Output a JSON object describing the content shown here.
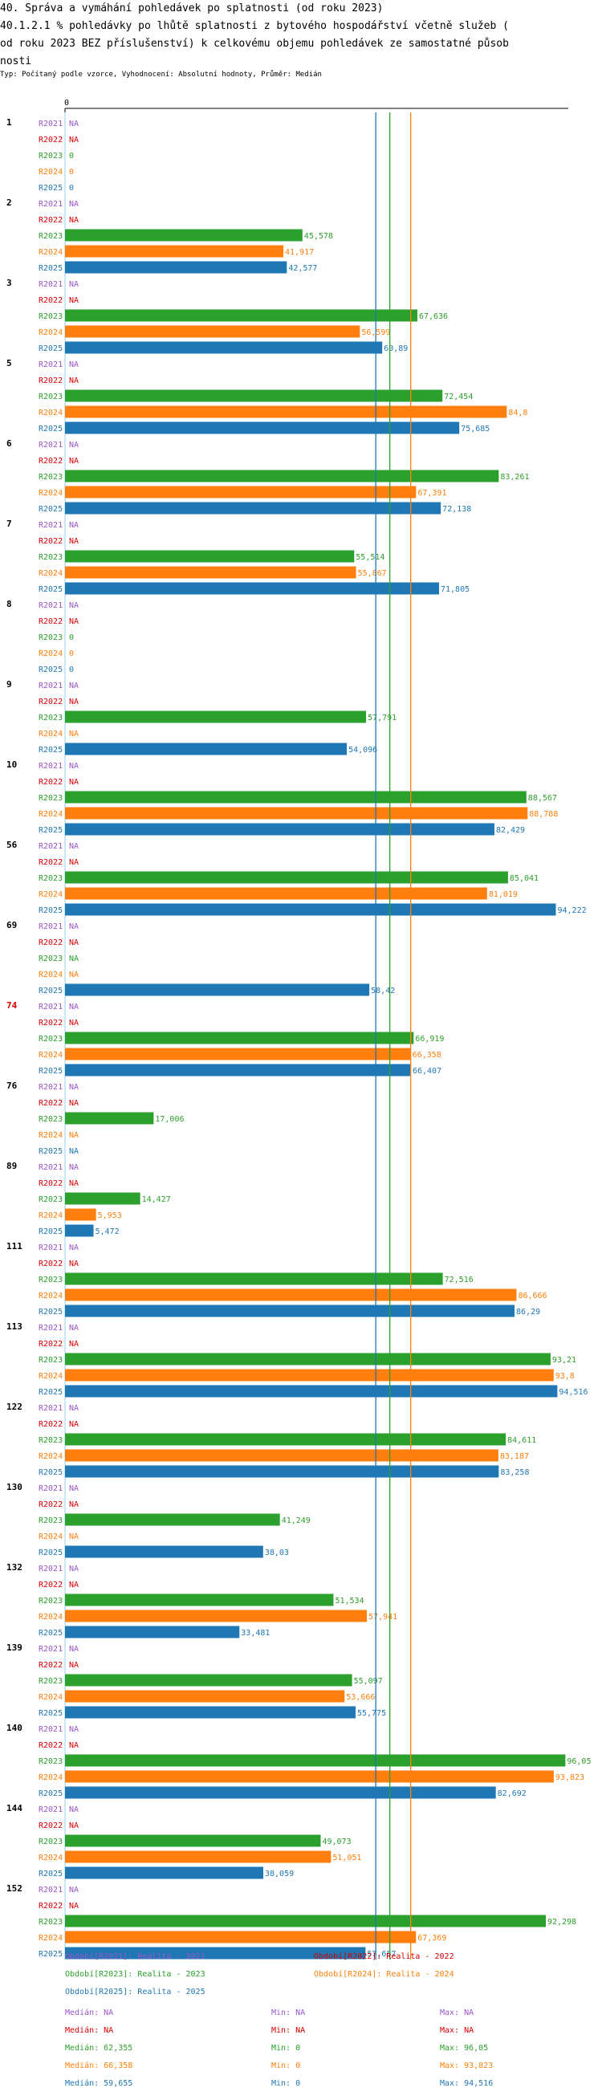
{
  "title_lines": [
    "40. Správa a vymáhání pohledávek po splatnosti (od roku 2023)",
    "40.1.2.1 % pohledávky po lhůtě splatnosti z bytového hospodářství včetně služeb (",
    "od roku 2023 BEZ příslušenství) k celkovému objemu pohledávek ze samostatné působ",
    "nosti"
  ],
  "subtitle": "Typ: Počítaný podle vzorce, Vyhodnocení: Absolutní hodnoty, Průměr: Medián",
  "colors": {
    "R2021": "#9a56c8",
    "R2022": "#d40000",
    "R2023": "#2ca02c",
    "R2024": "#ff7f0e",
    "R2025": "#1f77b4"
  },
  "chart_data": {
    "type": "bar",
    "orientation": "horizontal",
    "axis_zero_label": "0",
    "xlim": [
      0,
      100
    ],
    "series_names": [
      "R2021",
      "R2022",
      "R2023",
      "R2024",
      "R2025"
    ],
    "na_label": "NA",
    "categories": [
      {
        "id": "1",
        "highlight": false,
        "values": [
          null,
          null,
          0,
          0,
          0
        ],
        "labels": [
          "NA",
          "NA",
          "0",
          "0",
          "0"
        ]
      },
      {
        "id": "2",
        "highlight": false,
        "values": [
          null,
          null,
          45.578,
          41.917,
          42.577
        ],
        "labels": [
          "NA",
          "NA",
          "45,578",
          "41,917",
          "42,577"
        ]
      },
      {
        "id": "3",
        "highlight": false,
        "values": [
          null,
          null,
          67.636,
          56.599,
          60.89
        ],
        "labels": [
          "NA",
          "NA",
          "67,636",
          "56,599",
          "60,89"
        ]
      },
      {
        "id": "5",
        "highlight": false,
        "values": [
          null,
          null,
          72.454,
          84.8,
          75.685
        ],
        "labels": [
          "NA",
          "NA",
          "72,454",
          "84,8",
          "75,685"
        ]
      },
      {
        "id": "6",
        "highlight": false,
        "values": [
          null,
          null,
          83.261,
          67.391,
          72.138
        ],
        "labels": [
          "NA",
          "NA",
          "83,261",
          "67,391",
          "72,138"
        ]
      },
      {
        "id": "7",
        "highlight": false,
        "values": [
          null,
          null,
          55.514,
          55.867,
          71.805
        ],
        "labels": [
          "NA",
          "NA",
          "55,514",
          "55,867",
          "71,805"
        ]
      },
      {
        "id": "8",
        "highlight": false,
        "values": [
          null,
          null,
          0,
          0,
          0
        ],
        "labels": [
          "NA",
          "NA",
          "0",
          "0",
          "0"
        ]
      },
      {
        "id": "9",
        "highlight": false,
        "values": [
          null,
          null,
          57.791,
          null,
          54.096
        ],
        "labels": [
          "NA",
          "NA",
          "57,791",
          "NA",
          "54,096"
        ]
      },
      {
        "id": "10",
        "highlight": false,
        "values": [
          null,
          null,
          88.567,
          88.788,
          82.429
        ],
        "labels": [
          "NA",
          "NA",
          "88,567",
          "88,788",
          "82,429"
        ]
      },
      {
        "id": "56",
        "highlight": false,
        "values": [
          null,
          null,
          85.041,
          81.019,
          94.222
        ],
        "labels": [
          "NA",
          "NA",
          "85,041",
          "81,019",
          "94,222"
        ]
      },
      {
        "id": "69",
        "highlight": false,
        "values": [
          null,
          null,
          null,
          null,
          58.42
        ],
        "labels": [
          "NA",
          "NA",
          "NA",
          "NA",
          "58,42"
        ]
      },
      {
        "id": "74",
        "highlight": true,
        "values": [
          null,
          null,
          66.919,
          66.358,
          66.407
        ],
        "labels": [
          "NA",
          "NA",
          "66,919",
          "66,358",
          "66,407"
        ]
      },
      {
        "id": "76",
        "highlight": false,
        "values": [
          null,
          null,
          17.006,
          null,
          null
        ],
        "labels": [
          "NA",
          "NA",
          "17,006",
          "NA",
          "NA"
        ]
      },
      {
        "id": "89",
        "highlight": false,
        "values": [
          null,
          null,
          14.427,
          5.953,
          5.472
        ],
        "labels": [
          "NA",
          "NA",
          "14,427",
          "5,953",
          "5,472"
        ]
      },
      {
        "id": "111",
        "highlight": false,
        "values": [
          null,
          null,
          72.516,
          86.666,
          86.29
        ],
        "labels": [
          "NA",
          "NA",
          "72,516",
          "86,666",
          "86,29"
        ]
      },
      {
        "id": "113",
        "highlight": false,
        "values": [
          null,
          null,
          93.21,
          93.8,
          94.516
        ],
        "labels": [
          "NA",
          "NA",
          "93,21",
          "93,8",
          "94,516"
        ]
      },
      {
        "id": "122",
        "highlight": false,
        "values": [
          null,
          null,
          84.611,
          83.187,
          83.258
        ],
        "labels": [
          "NA",
          "NA",
          "84,611",
          "83,187",
          "83,258"
        ]
      },
      {
        "id": "130",
        "highlight": false,
        "values": [
          null,
          null,
          41.249,
          null,
          38.03
        ],
        "labels": [
          "NA",
          "NA",
          "41,249",
          "NA",
          "38,03"
        ]
      },
      {
        "id": "132",
        "highlight": false,
        "values": [
          null,
          null,
          51.534,
          57.941,
          33.481
        ],
        "labels": [
          "NA",
          "NA",
          "51,534",
          "57,941",
          "33,481"
        ]
      },
      {
        "id": "139",
        "highlight": false,
        "values": [
          null,
          null,
          55.097,
          53.666,
          55.775
        ],
        "labels": [
          "NA",
          "NA",
          "55,097",
          "53,666",
          "55,775"
        ]
      },
      {
        "id": "140",
        "highlight": false,
        "values": [
          null,
          null,
          96.05,
          93.823,
          82.692
        ],
        "labels": [
          "NA",
          "NA",
          "96,05",
          "93,823",
          "82,692"
        ]
      },
      {
        "id": "144",
        "highlight": false,
        "values": [
          null,
          null,
          49.073,
          51.051,
          38.059
        ],
        "labels": [
          "NA",
          "NA",
          "49,073",
          "51,051",
          "38,059"
        ]
      },
      {
        "id": "152",
        "highlight": false,
        "values": [
          null,
          null,
          92.298,
          67.369,
          57.687
        ],
        "labels": [
          "NA",
          "NA",
          "92,298",
          "67,369",
          "57,687"
        ]
      }
    ],
    "median_lines": [
      {
        "series": "R2023",
        "value": 62.355
      },
      {
        "series": "R2024",
        "value": 66.358
      },
      {
        "series": "R2025",
        "value": 59.655
      }
    ]
  },
  "legend": {
    "periods": [
      {
        "series": "R2021",
        "label": "Období[R2021]: Realita - 2021"
      },
      {
        "series": "R2022",
        "label": "Období[R2022]: Realita - 2022"
      },
      {
        "series": "R2023",
        "label": "Období[R2023]: Realita - 2023"
      },
      {
        "series": "R2024",
        "label": "Období[R2024]: Realita - 2024"
      },
      {
        "series": "R2025",
        "label": "Období[R2025]: Realita - 2025"
      }
    ],
    "stats": [
      {
        "series": "R2021",
        "median": "Medián: NA",
        "min": "Min: NA",
        "max": "Max: NA"
      },
      {
        "series": "R2022",
        "median": "Medián: NA",
        "min": "Min: NA",
        "max": "Max: NA"
      },
      {
        "series": "R2023",
        "median": "Medián: 62,355",
        "min": "Min: 0",
        "max": "Max: 96,05"
      },
      {
        "series": "R2024",
        "median": "Medián: 66,358",
        "min": "Min: 0",
        "max": "Max: 93,823"
      },
      {
        "series": "R2025",
        "median": "Medián: 59,655",
        "min": "Min: 0",
        "max": "Max: 94,516"
      }
    ]
  }
}
